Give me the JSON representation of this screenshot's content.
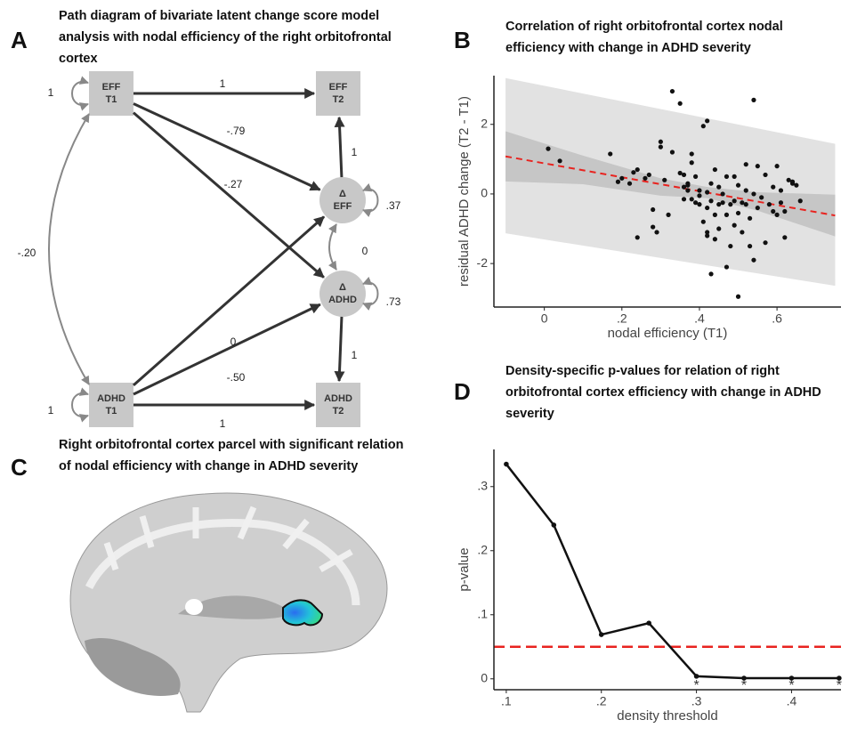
{
  "panel_letters": [
    "A",
    "B",
    "C",
    "D"
  ],
  "diagram": {
    "title": "Path diagram of bivariate latent change score model analysis with nodal efficiency of the right orbitofrontal cortex",
    "nodes": [
      {
        "lines": [
          "EFF",
          "T1"
        ]
      },
      {
        "lines": [
          "EFF",
          "T2"
        ]
      },
      {
        "lines": [
          "Δ",
          "EFF"
        ]
      },
      {
        "lines": [
          "Δ",
          "ADHD"
        ]
      },
      {
        "lines": [
          "ADHD",
          "T1"
        ]
      },
      {
        "lines": [
          "ADHD",
          "T2"
        ]
      }
    ],
    "edges": [
      {
        "label": "1"
      },
      {
        "label": "-.79"
      },
      {
        "label": "-.27"
      },
      {
        "label": "1"
      },
      {
        "label": "0"
      },
      {
        "label": "-.50"
      },
      {
        "label": "1"
      },
      {
        "label": "1"
      },
      {
        "label": "-.20"
      },
      {
        "label": "0"
      },
      {
        "label": "1"
      },
      {
        "label": "1"
      },
      {
        "label": ".37"
      },
      {
        "label": ".73"
      }
    ]
  },
  "image_panel": {
    "title": "Right orbitofrontal cortex parcel with significant relation of nodal efficiency with change in ADHD severity"
  },
  "chart_data": [
    {
      "type": "scatter",
      "title": "Correlation of right orbitofrontal cortex nodal efficiency with change in ADHD severity",
      "x_label": "nodal efficiency (T1)",
      "y_label": "residual ADHD change (T2 - T1)",
      "xlim": [
        -0.13,
        0.765
      ],
      "ylim": [
        -3.25,
        3.4
      ],
      "xticks": [
        0,
        {
          "value": 0.2,
          "label": ".2"
        },
        {
          "value": 0.4,
          "label": ".4"
        },
        {
          "value": 0.6,
          "label": ".6"
        }
      ],
      "yticks": [
        -2,
        0,
        2
      ],
      "color": "#111111",
      "x": [
        0.01,
        0.04,
        0.17,
        0.19,
        0.2,
        0.22,
        0.23,
        0.24,
        0.24,
        0.26,
        0.27,
        0.28,
        0.28,
        0.29,
        0.3,
        0.3,
        0.31,
        0.32,
        0.33,
        0.35,
        0.35,
        0.36,
        0.36,
        0.37,
        0.37,
        0.37,
        0.38,
        0.38,
        0.38,
        0.39,
        0.39,
        0.4,
        0.4,
        0.4,
        0.41,
        0.41,
        0.42,
        0.42,
        0.42,
        0.42,
        0.42,
        0.43,
        0.43,
        0.43,
        0.44,
        0.44,
        0.44,
        0.45,
        0.45,
        0.45,
        0.46,
        0.46,
        0.47,
        0.47,
        0.47,
        0.48,
        0.48,
        0.49,
        0.49,
        0.5,
        0.5,
        0.5,
        0.51,
        0.51,
        0.52,
        0.52,
        0.52,
        0.53,
        0.53,
        0.54,
        0.54,
        0.54,
        0.55,
        0.55,
        0.56,
        0.57,
        0.57,
        0.58,
        0.59,
        0.59,
        0.6,
        0.61,
        0.61,
        0.62,
        0.62,
        0.63,
        0.64,
        0.64,
        0.65,
        0.66,
        0.6,
        0.49,
        0.36,
        0.33
      ],
      "values": [
        1.3,
        0.95,
        1.15,
        0.35,
        0.45,
        0.3,
        0.62,
        0.7,
        -1.25,
        0.45,
        0.55,
        -0.45,
        -0.95,
        -1.1,
        1.35,
        1.5,
        0.4,
        -0.6,
        2.95,
        2.6,
        0.6,
        0.55,
        0.2,
        0.1,
        0.3,
        0.25,
        0.9,
        1.15,
        -0.15,
        -0.25,
        0.5,
        0.1,
        -0.05,
        -0.3,
        1.95,
        -0.8,
        2.1,
        0.05,
        -1.1,
        -1.2,
        -0.4,
        -0.2,
        -2.3,
        0.3,
        -0.6,
        -1.3,
        0.7,
        0.2,
        -0.3,
        -1.0,
        0.0,
        -0.25,
        -2.1,
        -0.6,
        0.5,
        -0.3,
        -1.5,
        -0.2,
        -0.9,
        -0.55,
        -2.95,
        0.25,
        -0.25,
        -1.1,
        -0.3,
        0.85,
        0.1,
        -1.5,
        -0.7,
        2.7,
        -1.9,
        0.0,
        -0.4,
        0.8,
        -0.1,
        -1.4,
        0.55,
        -0.3,
        0.2,
        -0.5,
        0.8,
        -0.25,
        0.1,
        -0.5,
        -1.25,
        0.4,
        0.3,
        0.35,
        0.25,
        -0.2,
        -0.6,
        0.5,
        -0.15,
        1.2
      ],
      "fit_line": {
        "x": [
          -0.1,
          0.75
        ],
        "values": [
          1.08,
          -0.62
        ],
        "color": "#e8231f"
      },
      "prediction_band": {
        "x": [
          -0.1,
          0.75
        ],
        "upper": [
          3.33,
          1.44
        ],
        "lower": [
          -1.13,
          -2.64
        ],
        "color": "#e2e2e2"
      },
      "confidence_band": {
        "x": [
          -0.1,
          0.1,
          0.3,
          0.42,
          0.55,
          0.75
        ],
        "upper": [
          1.8,
          1.1,
          0.45,
          0.2,
          0.05,
          -0.02
        ],
        "lower": [
          0.36,
          0.28,
          -0.05,
          -0.12,
          -0.48,
          -1.22
        ],
        "color": "#c6c6c6"
      }
    },
    {
      "type": "line",
      "title": "Density-specific p-values for relation of right orbitofrontal cortex efficiency with change in ADHD severity",
      "x_label": "density threshold",
      "y_label": "p-value",
      "xlim": [
        0.087,
        0.452
      ],
      "ylim": [
        -0.017,
        0.358
      ],
      "xticks": [
        {
          "value": 0.1,
          "label": ".1"
        },
        {
          "value": 0.2,
          "label": ".2"
        },
        {
          "value": 0.3,
          "label": ".3"
        },
        {
          "value": 0.4,
          "label": ".4"
        }
      ],
      "yticks": [
        0,
        {
          "value": 0.1,
          "label": ".1"
        },
        {
          "value": 0.2,
          "label": ".2"
        },
        {
          "value": 0.3,
          "label": ".3"
        }
      ],
      "x": [
        0.1,
        0.15,
        0.2,
        0.25,
        0.3,
        0.35,
        0.4,
        0.45
      ],
      "series": [
        {
          "color": "#111111",
          "values": [
            0.335,
            0.24,
            0.069,
            0.087,
            0.004,
            0.001,
            0.001,
            0.001
          ]
        }
      ],
      "reference_line": {
        "y": 0.05,
        "color": "#e8231f"
      },
      "annotations": [
        {
          "x": 0.3,
          "text": "*"
        },
        {
          "x": 0.35,
          "text": "*"
        },
        {
          "x": 0.4,
          "text": "*"
        },
        {
          "x": 0.45,
          "text": "*"
        }
      ]
    }
  ]
}
